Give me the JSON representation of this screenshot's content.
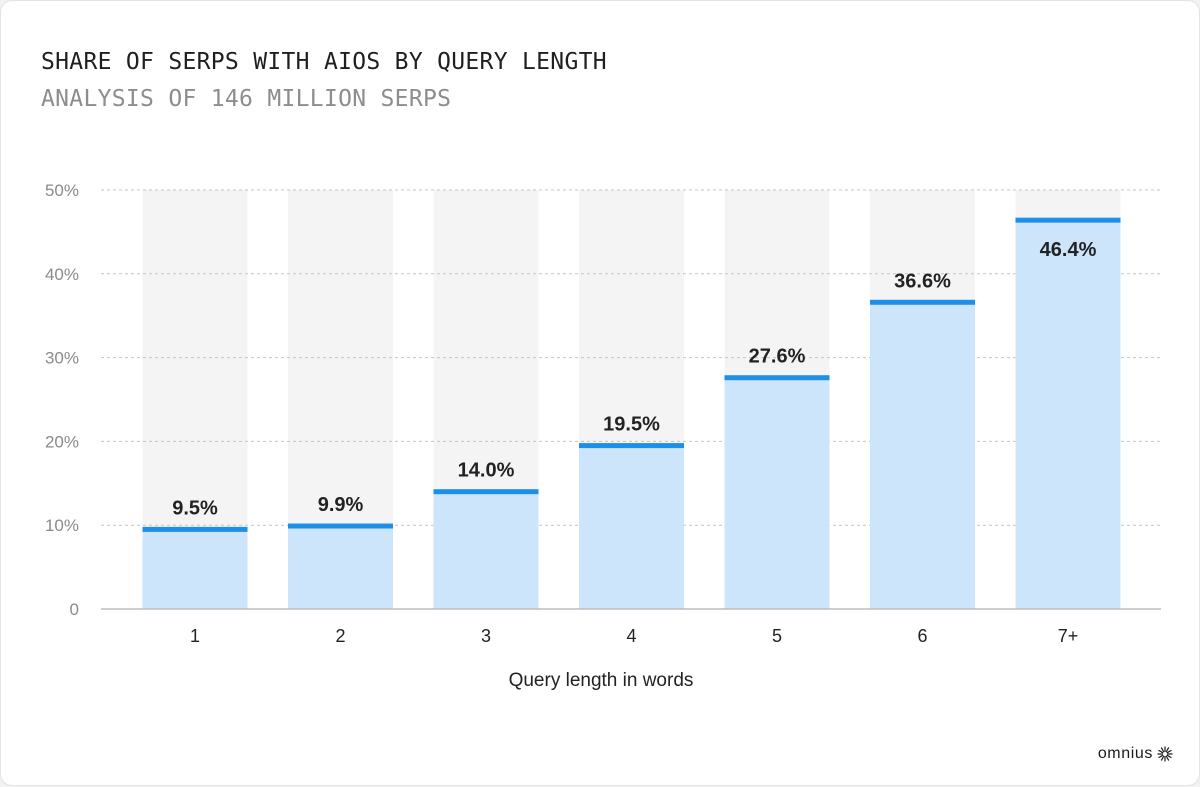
{
  "chart_data": {
    "type": "bar",
    "title": "SHARE OF SERPS WITH AIOS BY QUERY LENGTH",
    "subtitle": "ANALYSIS OF 146 MILLION SERPS",
    "xlabel": "Query length in words",
    "ylabel": "",
    "categories": [
      "1",
      "2",
      "3",
      "4",
      "5",
      "6",
      "7+"
    ],
    "values": [
      9.5,
      9.9,
      14.0,
      19.5,
      27.6,
      36.6,
      46.4
    ],
    "value_labels": [
      "9.5%",
      "9.9%",
      "14.0%",
      "19.5%",
      "27.6%",
      "36.6%",
      "46.4%"
    ],
    "ylim": [
      0,
      50
    ],
    "yticks": [
      0,
      10,
      20,
      30,
      40,
      50
    ],
    "ytick_labels": [
      "0",
      "10%",
      "20%",
      "30%",
      "40%",
      "50%"
    ],
    "grid": true,
    "colors": {
      "bar_fill": "#cce5fb",
      "bar_top": "#1e8fe8",
      "track": "#f4f4f4",
      "grid": "#c4c4c4",
      "axis": "#bdbdbd"
    }
  },
  "brand": {
    "name": "omnius",
    "icon": "omnius-burst-icon"
  }
}
